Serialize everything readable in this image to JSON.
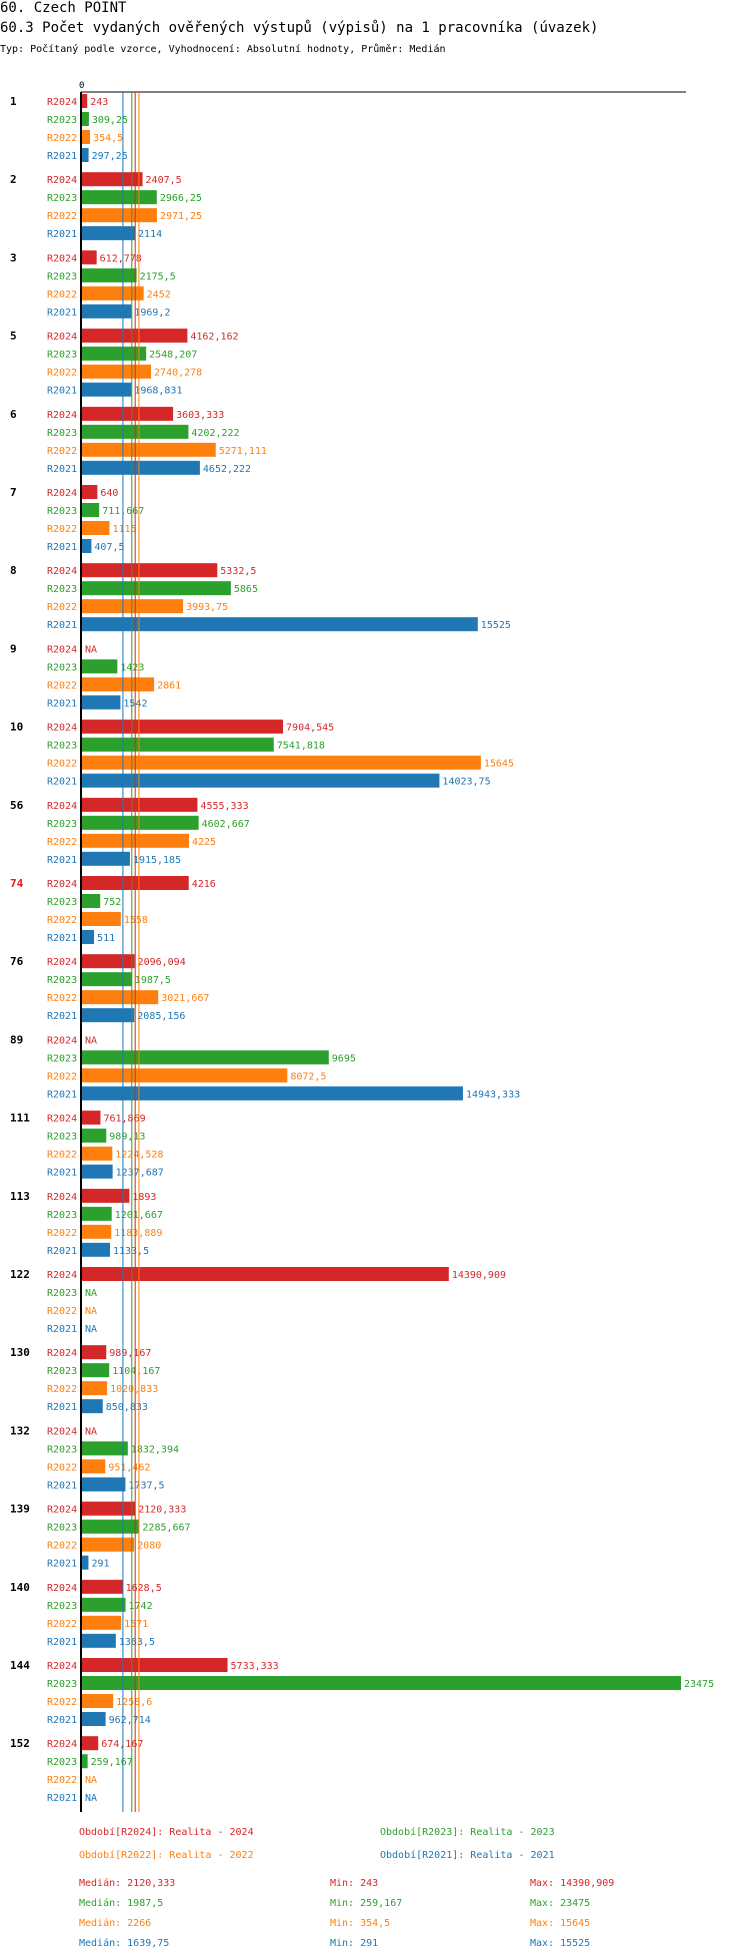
{
  "header": {
    "title": "60. Czech POINT",
    "subtitle": "60.3 Počet vydaných ověřených výstupů (výpisů) na 1 pracovníka (úvazek)",
    "type_line": "Typ: Počítaný podle vzorce, Vyhodnocení: Absolutní hodnoty, Průměr: Medián"
  },
  "colors": {
    "R2024": "#d62728",
    "R2023": "#2ca02c",
    "R2022": "#ff7f0e",
    "R2021": "#1f77b4",
    "highlight_group": "#e8171b"
  },
  "chart_data": {
    "type": "bar",
    "orientation": "horizontal",
    "title": "60.3 Počet vydaných ověřených výstupů (výpisů) na 1 pracovníka (úvazek)",
    "axis_zero_label": "0",
    "xlim": [
      0,
      23475
    ],
    "series_names": [
      "R2024",
      "R2023",
      "R2022",
      "R2021"
    ],
    "na_label": "NA",
    "groups": [
      {
        "id": "1",
        "highlight": false,
        "values": [
          243,
          309.25,
          354.5,
          297.25
        ],
        "labels": [
          "243",
          "309,25",
          "354,5",
          "297,25"
        ]
      },
      {
        "id": "2",
        "highlight": false,
        "values": [
          2407.5,
          2966.25,
          2971.25,
          2114
        ],
        "labels": [
          "2407,5",
          "2966,25",
          "2971,25",
          "2114"
        ]
      },
      {
        "id": "3",
        "highlight": false,
        "values": [
          612.778,
          2175.5,
          2452,
          1969.2
        ],
        "labels": [
          "612,778",
          "2175,5",
          "2452",
          "1969,2"
        ]
      },
      {
        "id": "5",
        "highlight": false,
        "values": [
          4162.162,
          2548.207,
          2740.278,
          1968.831
        ],
        "labels": [
          "4162,162",
          "2548,207",
          "2740,278",
          "1968,831"
        ]
      },
      {
        "id": "6",
        "highlight": false,
        "values": [
          3603.333,
          4202.222,
          5271.111,
          4652.222
        ],
        "labels": [
          "3603,333",
          "4202,222",
          "5271,111",
          "4652,222"
        ]
      },
      {
        "id": "7",
        "highlight": false,
        "values": [
          640,
          711.667,
          1115,
          407.5
        ],
        "labels": [
          "640",
          "711,667",
          "1115",
          "407,5"
        ]
      },
      {
        "id": "8",
        "highlight": false,
        "values": [
          5332.5,
          5865,
          3993.75,
          15525
        ],
        "labels": [
          "5332,5",
          "5865",
          "3993,75",
          "15525"
        ]
      },
      {
        "id": "9",
        "highlight": false,
        "values": [
          null,
          1423,
          2861,
          1542
        ],
        "labels": [
          "NA",
          "1423",
          "2861",
          "1542"
        ]
      },
      {
        "id": "10",
        "highlight": false,
        "values": [
          7904.545,
          7541.818,
          15645,
          14023.75
        ],
        "labels": [
          "7904,545",
          "7541,818",
          "15645",
          "14023,75"
        ]
      },
      {
        "id": "56",
        "highlight": false,
        "values": [
          4555.333,
          4602.667,
          4225,
          1915.185
        ],
        "labels": [
          "4555,333",
          "4602,667",
          "4225",
          "1915,185"
        ]
      },
      {
        "id": "74",
        "highlight": true,
        "values": [
          4216,
          752,
          1558,
          511
        ],
        "labels": [
          "4216",
          "752",
          "1558",
          "511"
        ]
      },
      {
        "id": "76",
        "highlight": false,
        "values": [
          2096.094,
          1987.5,
          3021.667,
          2085.156
        ],
        "labels": [
          "2096,094",
          "1987,5",
          "3021,667",
          "2085,156"
        ]
      },
      {
        "id": "89",
        "highlight": false,
        "values": [
          null,
          9695,
          8072.5,
          14943.333
        ],
        "labels": [
          "NA",
          "9695",
          "8072,5",
          "14943,333"
        ]
      },
      {
        "id": "111",
        "highlight": false,
        "values": [
          761.869,
          989.13,
          1224.528,
          1237.687
        ],
        "labels": [
          "761,869",
          "989,13",
          "1224,528",
          "1237,687"
        ]
      },
      {
        "id": "113",
        "highlight": false,
        "values": [
          1893,
          1201.667,
          1183.889,
          1133.5
        ],
        "labels": [
          "1893",
          "1201,667",
          "1183,889",
          "1133,5"
        ]
      },
      {
        "id": "122",
        "highlight": false,
        "values": [
          14390.909,
          null,
          null,
          null
        ],
        "labels": [
          "14390,909",
          "NA",
          "NA",
          "NA"
        ]
      },
      {
        "id": "130",
        "highlight": false,
        "values": [
          989.167,
          1104.167,
          1020.833,
          850.833
        ],
        "labels": [
          "989,167",
          "1104,167",
          "1020,833",
          "850,833"
        ]
      },
      {
        "id": "132",
        "highlight": false,
        "values": [
          null,
          1832.394,
          951.462,
          1737.5
        ],
        "labels": [
          "NA",
          "1832,394",
          "951,462",
          "1737,5"
        ]
      },
      {
        "id": "139",
        "highlight": false,
        "values": [
          2120.333,
          2285.667,
          2080,
          291
        ],
        "labels": [
          "2120,333",
          "2285,667",
          "2080",
          "291"
        ]
      },
      {
        "id": "140",
        "highlight": false,
        "values": [
          1628.5,
          1742,
          1571,
          1363.5
        ],
        "labels": [
          "1628,5",
          "1742",
          "1571",
          "1363,5"
        ]
      },
      {
        "id": "144",
        "highlight": false,
        "values": [
          5733.333,
          23475,
          1258.6,
          962.714
        ],
        "labels": [
          "5733,333",
          "23475",
          "1258,6",
          "962,714"
        ]
      },
      {
        "id": "152",
        "highlight": false,
        "values": [
          674.167,
          259.167,
          null,
          null
        ],
        "labels": [
          "674,167",
          "259,167",
          "NA",
          "NA"
        ]
      }
    ],
    "median_lines": {
      "R2024": 2120.333,
      "R2023": 1987.5,
      "R2022": 2266,
      "R2021": 1639.75
    },
    "legend": [
      {
        "series": "R2024",
        "text": "Období[R2024]: Realita - 2024"
      },
      {
        "series": "R2023",
        "text": "Období[R2023]: Realita - 2023"
      },
      {
        "series": "R2022",
        "text": "Období[R2022]: Realita - 2022"
      },
      {
        "series": "R2021",
        "text": "Období[R2021]: Realita - 2021"
      }
    ],
    "stats": [
      {
        "series": "R2024",
        "median": "Medián: 2120,333",
        "min": "Min: 243",
        "max": "Max: 14390,909"
      },
      {
        "series": "R2023",
        "median": "Medián: 1987,5",
        "min": "Min: 259,167",
        "max": "Max: 23475"
      },
      {
        "series": "R2022",
        "median": "Medián: 2266",
        "min": "Min: 354,5",
        "max": "Max: 15645"
      },
      {
        "series": "R2021",
        "median": "Medián: 1639,75",
        "min": "Min: 291",
        "max": "Max: 15525"
      }
    ]
  }
}
